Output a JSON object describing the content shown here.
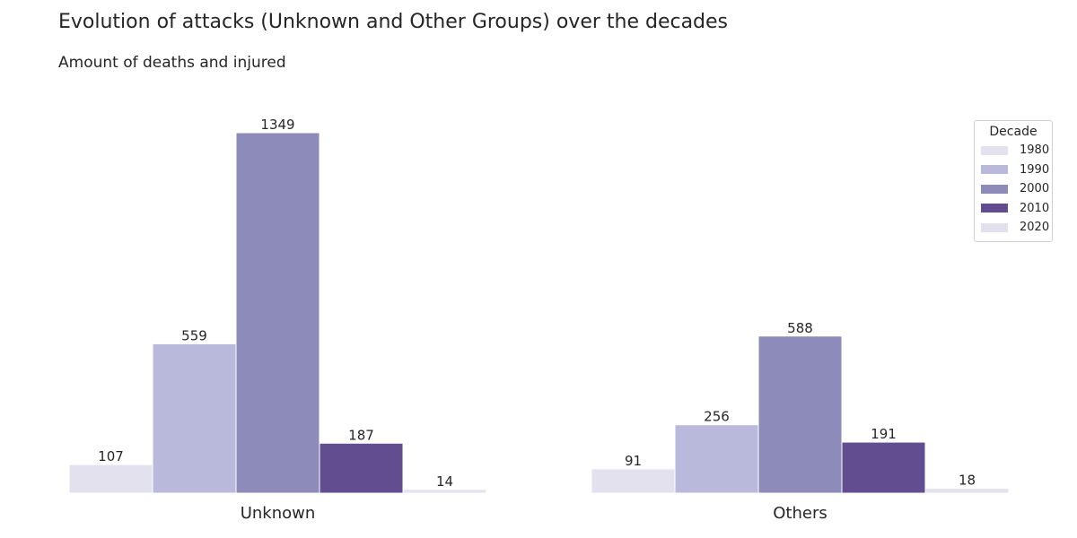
{
  "chart_data": {
    "type": "bar",
    "title": "Evolution of attacks (Unknown and Other Groups) over the decades",
    "subtitle": "Amount of deaths and injured",
    "categories": [
      "Unknown",
      "Others"
    ],
    "series": [
      {
        "name": "1980",
        "color": "#e3e1ed",
        "values": [
          107,
          91
        ]
      },
      {
        "name": "1990",
        "color": "#b9badb",
        "values": [
          559,
          256
        ]
      },
      {
        "name": "2000",
        "color": "#8c8bba",
        "values": [
          1349,
          588
        ]
      },
      {
        "name": "2010",
        "color": "#634d91",
        "values": [
          187,
          191
        ]
      },
      {
        "name": "2020",
        "color": "#e3e1ed",
        "values": [
          14,
          18
        ]
      }
    ],
    "legend": {
      "title": "Decade",
      "position": "top-right"
    },
    "ylim": [
      0,
      1349
    ],
    "grid": false,
    "y_axis_visible": false
  }
}
